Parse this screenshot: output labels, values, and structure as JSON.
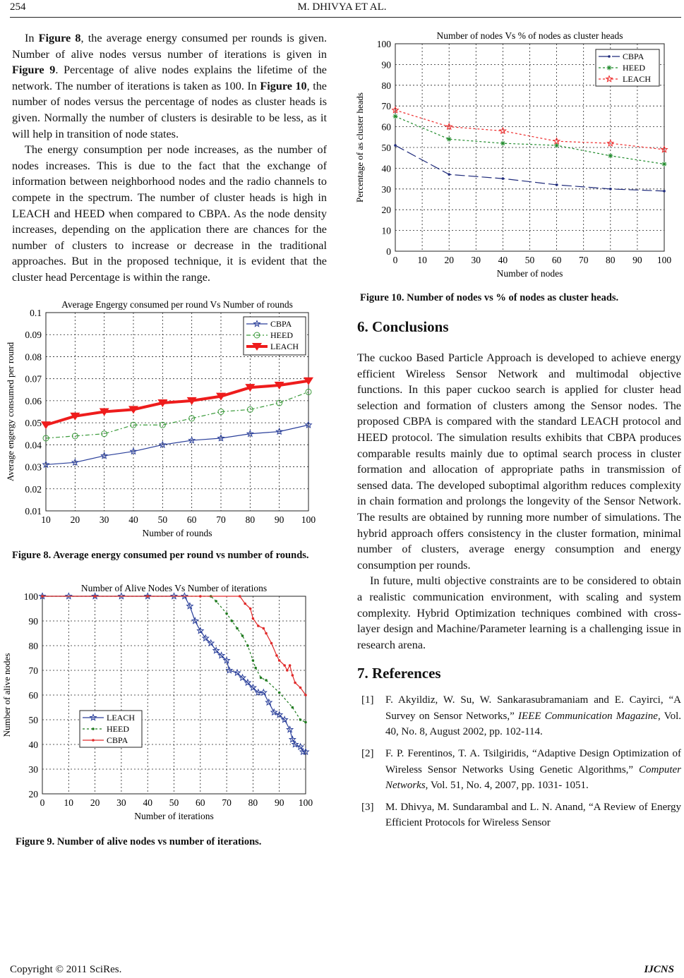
{
  "header": {
    "page_number": "254",
    "authors": "M. DHIVYA   ET   AL."
  },
  "left": {
    "p1": [
      {
        "t": "In "
      },
      {
        "t": "Figure 8",
        "b": true
      },
      {
        "t": ", the average energy consumed per rounds is given. Number of alive nodes versus number of iterations is given in "
      },
      {
        "t": "Figure 9",
        "b": true
      },
      {
        "t": ". Percentage of alive nodes explains the lifetime of the network. The number of iterations is taken as 100. In "
      },
      {
        "t": "Figure 10",
        "b": true
      },
      {
        "t": ", the number of nodes versus the percentage of nodes as cluster heads is given. Normally the number of clusters is desirable to be less, as it will help in transition of node states."
      }
    ],
    "p2": "The energy consumption per node increases, as the number of nodes increases. This is due to the fact that the exchange of information between neighborhood nodes and the radio channels to compete in the spectrum. The number of cluster heads is high in LEACH and HEED when compared to CBPA. As the node density increases, depending on the application there are chances for the number of clusters to increase or decrease in the traditional approaches. But in the proposed technique, it is evident that the cluster head Percentage is within the range.",
    "fig8_caption": "Figure 8. Average energy consumed per round vs number of rounds.",
    "fig9_caption": "Figure 9. Number of alive nodes vs number of iterations."
  },
  "right": {
    "fig10_caption": "Figure 10. Number of nodes vs % of nodes as cluster heads.",
    "conclusions_heading": "6. Conclusions",
    "c1": "The cuckoo Based Particle Approach is developed to achieve energy efficient Wireless Sensor Network and multimodal objective functions. In this paper cuckoo search is applied for cluster head selection and formation of clusters among the Sensor nodes. The proposed CBPA is compared with the standard LEACH protocol and HEED protocol. The simulation results exhibits that CBPA produces comparable results mainly due to optimal search process in cluster formation and allocation of appropriate paths in transmission of sensed data. The developed suboptimal algorithm reduces complexity in chain formation and prolongs the longevity of the Sensor Network. The results are obtained by running more number of simulations. The hybrid approach offers consistency in the cluster formation, minimal number of clusters, average energy consumption and energy consumption per rounds.",
    "c2": "In future, multi objective constraints are to be considered to obtain a realistic communication environment, with scaling and system complexity. Hybrid Optimization techniques combined with cross-layer design and Machine/Parameter learning is a challenging issue in research arena.",
    "references_heading": "7. References",
    "refs": [
      {
        "n": "[1]",
        "a": "F. Akyildiz, W. Su, W. Sankarasubramaniam and E. Cayirci, “A Survey on Sensor Networks,” ",
        "j": "IEEE Communication Magazine",
        "r": ", Vol. 40, No. 8, August 2002, pp. 102-114."
      },
      {
        "n": "[2]",
        "a": "F. P. Ferentinos, T. A. Tsilgiridis, “Adaptive Design Optimization of Wireless Sensor Networks Using Genetic Algorithms,” ",
        "j": "Computer Networks",
        "r": ", Vol. 51, No. 4, 2007, pp. 1031- 1051."
      },
      {
        "n": "[3]",
        "a": "M. Dhivya, M. Sundarambal and L. N. Anand, “A Review of Energy Efficient Protocols for Wireless Sensor",
        "j": "",
        "r": ""
      }
    ]
  },
  "footer": {
    "copyright": "Copyright © 2011 SciRes.",
    "journal": "IJCNS"
  },
  "chart_data": [
    {
      "id": "fig8",
      "type": "line",
      "title": "Average Engergy consumed per round Vs Number of rounds",
      "xlabel": "Number of rounds",
      "ylabel": "Average engergy consumed per round",
      "xlim": [
        10,
        100
      ],
      "ylim": [
        0.01,
        0.1
      ],
      "xticks": [
        10,
        20,
        30,
        40,
        50,
        60,
        70,
        80,
        90,
        100
      ],
      "yticks": [
        0.01,
        0.02,
        0.03,
        0.04,
        0.05,
        0.06,
        0.07,
        0.08,
        0.09,
        0.1
      ],
      "ytick_labels": [
        "0.01",
        "0.02",
        "0.03",
        "0.04",
        "0.05",
        "0.06",
        "0.07",
        "0.08",
        "0.09",
        "0.1"
      ],
      "grid": true,
      "legend": "top-right",
      "series": [
        {
          "name": "CBPA",
          "color": "#2a3f9a",
          "marker": "star",
          "dash": "",
          "x": [
            10,
            20,
            30,
            40,
            50,
            60,
            70,
            80,
            90,
            100
          ],
          "y": [
            0.031,
            0.032,
            0.035,
            0.037,
            0.04,
            0.042,
            0.043,
            0.045,
            0.046,
            0.049
          ]
        },
        {
          "name": "HEED",
          "color": "#3a9a3a",
          "marker": "circle",
          "dash": "6,3,2,3",
          "x": [
            10,
            20,
            30,
            40,
            50,
            60,
            70,
            80,
            90,
            100
          ],
          "y": [
            0.043,
            0.044,
            0.045,
            0.049,
            0.049,
            0.052,
            0.055,
            0.056,
            0.059,
            0.064
          ]
        },
        {
          "name": "LEACH",
          "color": "#ee1c1c",
          "marker": "triangle",
          "dash": "",
          "width": 4,
          "x": [
            10,
            20,
            30,
            40,
            50,
            60,
            70,
            80,
            90,
            100
          ],
          "y": [
            0.049,
            0.053,
            0.055,
            0.056,
            0.059,
            0.06,
            0.062,
            0.066,
            0.067,
            0.069
          ]
        }
      ]
    },
    {
      "id": "fig9",
      "type": "line",
      "title": "Number of Alive Nodes Vs Number of iterations",
      "xlabel": "Number of iterations",
      "ylabel": "Number of alive nodes",
      "xlim": [
        0,
        100
      ],
      "ylim": [
        20,
        100
      ],
      "xticks": [
        0,
        10,
        20,
        30,
        40,
        50,
        60,
        70,
        80,
        90,
        100
      ],
      "yticks": [
        20,
        30,
        40,
        50,
        60,
        70,
        80,
        90,
        100
      ],
      "grid": true,
      "legend": "center-left",
      "series": [
        {
          "name": "LEACH",
          "color": "#2a3f9a",
          "marker": "star",
          "dash": "",
          "x": [
            0,
            10,
            20,
            30,
            40,
            50,
            54,
            56,
            58,
            60,
            62,
            64,
            66,
            68,
            70,
            71,
            74,
            76,
            78,
            80,
            82,
            84,
            86,
            88,
            90,
            92,
            94,
            95,
            96,
            98,
            99,
            100
          ],
          "y": [
            100,
            100,
            100,
            100,
            100,
            100,
            100,
            96,
            90,
            86,
            83,
            81,
            78,
            76,
            74,
            70,
            69,
            67,
            65,
            63,
            61,
            61,
            57,
            53,
            52,
            50,
            46,
            42,
            40,
            39,
            37,
            37
          ]
        },
        {
          "name": "HEED",
          "color": "#1e7a1e",
          "marker": "dot",
          "dash": "3,3",
          "x": [
            0,
            20,
            40,
            64,
            66,
            70,
            72,
            74,
            76,
            78,
            80,
            81,
            83,
            85,
            90,
            95,
            98,
            100
          ],
          "y": [
            100,
            100,
            100,
            100,
            98,
            93,
            90,
            87,
            84,
            80,
            74,
            71,
            67,
            66,
            61,
            55,
            50,
            49
          ]
        },
        {
          "name": "CBPA",
          "color": "#e02a2a",
          "marker": "dot",
          "dash": "",
          "x": [
            0,
            20,
            40,
            60,
            75,
            77,
            79,
            80,
            82,
            84,
            85,
            87,
            89,
            90,
            92,
            93,
            94,
            95,
            96,
            98,
            100
          ],
          "y": [
            100,
            100,
            100,
            100,
            100,
            97,
            95,
            91,
            88,
            87,
            85,
            81,
            76,
            74,
            72,
            70,
            72,
            68,
            65,
            63,
            60
          ]
        }
      ]
    },
    {
      "id": "fig10",
      "type": "line",
      "title": "Number of nodes Vs % of nodes as cluster heads",
      "xlabel": "Number of nodes",
      "ylabel": "Percentage of as cluster heads",
      "xlim": [
        0,
        100
      ],
      "ylim": [
        0,
        100
      ],
      "xticks": [
        0,
        10,
        20,
        30,
        40,
        50,
        60,
        70,
        80,
        90,
        100
      ],
      "yticks": [
        0,
        10,
        20,
        30,
        40,
        50,
        60,
        70,
        80,
        90,
        100
      ],
      "grid": true,
      "legend": "top-right",
      "series": [
        {
          "name": "CBPA",
          "color": "#1e2a7a",
          "marker": "dot",
          "dash": "14,5",
          "x": [
            0,
            20,
            40,
            60,
            80,
            100
          ],
          "y": [
            51,
            37,
            35,
            32,
            30,
            29
          ]
        },
        {
          "name": "HEED",
          "color": "#1e8a2a",
          "marker": "asterisk",
          "dash": "3,3",
          "x": [
            0,
            20,
            40,
            60,
            80,
            100
          ],
          "y": [
            65,
            54,
            52,
            51,
            46,
            42
          ]
        },
        {
          "name": "LEACH",
          "color": "#ee2a2a",
          "marker": "star",
          "dash": "3,3",
          "x": [
            0,
            20,
            40,
            60,
            80,
            100
          ],
          "y": [
            68,
            60,
            58,
            53,
            52,
            49
          ]
        }
      ]
    }
  ]
}
